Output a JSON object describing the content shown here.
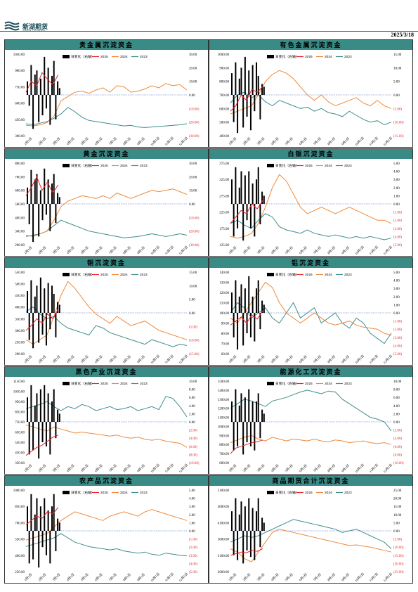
{
  "header": {
    "logo_text": "新湖期货",
    "logo_sub": "XINHU FUTURES",
    "date": "2025/3/18"
  },
  "colors": {
    "panel_title_bg": "#3a8a86",
    "daily_change": "#000000",
    "y2025": "#e8232a",
    "y2024": "#ee8a3c",
    "y2023": "#3e8e8c",
    "zero_line": "#4a6fd0",
    "negative_label": "#e8232a"
  },
  "chart_data": [
    {
      "type": "line",
      "title": "贵金属沉淀资金",
      "legend": [
        "日变化（右轴）",
        "2025",
        "2024",
        "2023"
      ],
      "left_ticks": [
        "1050.00",
        "900.00",
        "750.00",
        "600.00",
        "450.00",
        "300.00"
      ],
      "left_range": [
        300,
        1050
      ],
      "right_ticks": [
        "30.00",
        "20.00",
        "10.00",
        "0.00",
        "(10.00)",
        "(20.00)",
        "(30.00)"
      ],
      "right_range": [
        -30,
        30
      ],
      "x_labels": [
        "1月1日",
        "2月1日",
        "3月1日",
        "4月1日",
        "5月1日",
        "6月1日",
        "7月1日",
        "8月1日",
        "9月1日",
        "10月1日",
        "11月1日",
        "12月1日"
      ],
      "y2023": [
        410,
        400,
        415,
        430,
        460,
        500,
        560,
        520,
        470,
        440,
        430,
        420,
        410,
        400,
        390,
        395,
        380,
        375,
        380,
        385,
        390,
        395,
        400,
        410
      ],
      "y2024": [
        395,
        390,
        400,
        420,
        480,
        620,
        660,
        700,
        710,
        690,
        720,
        740,
        700,
        760,
        750,
        700,
        710,
        730,
        760,
        740,
        780,
        760,
        770,
        720
      ],
      "y2025": [
        700,
        800,
        760,
        880,
        820,
        770,
        860
      ],
      "daily": [
        10,
        -8,
        22,
        -25,
        15,
        18,
        -20,
        12,
        -15,
        28,
        -10,
        20,
        -22,
        14,
        25,
        -18,
        10,
        5
      ]
    },
    {
      "type": "line",
      "title": "有色金属沉淀资金",
      "legend": [
        "日变化（右轴）",
        "2025",
        "2024",
        "2023"
      ],
      "left_ticks": [
        "1000.00",
        "900.00",
        "800.00",
        "700.00",
        "600.00",
        "500.00",
        "400.00"
      ],
      "left_range": [
        400,
        1000
      ],
      "right_ticks": [
        "15.00",
        "10.00",
        "5.00",
        "0.00",
        "(5.00)",
        "(10.00)",
        "(15.00)"
      ],
      "right_range": [
        -15,
        15
      ],
      "x_labels": [
        "1月1日",
        "2月1日",
        "3月1日",
        "4月1日",
        "5月1日",
        "6月1日",
        "7月1日",
        "8月1日",
        "9月1日",
        "10月1日",
        "11月1日",
        "12月1日"
      ],
      "y2023": [
        640,
        700,
        720,
        680,
        700,
        650,
        620,
        660,
        640,
        620,
        600,
        610,
        580,
        600,
        570,
        560,
        540,
        580,
        550,
        520,
        500,
        510,
        480,
        500
      ],
      "y2024": [
        560,
        580,
        600,
        620,
        700,
        800,
        850,
        880,
        860,
        820,
        760,
        700,
        660,
        700,
        650,
        620,
        640,
        660,
        680,
        640,
        620,
        660,
        620,
        600
      ],
      "y2025": [
        580,
        620,
        700,
        660,
        740,
        720,
        760
      ],
      "daily": [
        8,
        -10,
        12,
        -14,
        6,
        10,
        -12,
        14,
        -8,
        9,
        -13,
        11,
        -6,
        12,
        7,
        -9,
        4,
        3
      ]
    },
    {
      "type": "line",
      "title": "黄金沉淀资金",
      "legend": [
        "日变化（右轴）",
        "2025",
        "2024",
        "2023"
      ],
      "left_ticks": [
        "800.00",
        "700.00",
        "600.00",
        "500.00",
        "400.00",
        "300.00",
        "200.00"
      ],
      "left_range": [
        200,
        800
      ],
      "right_ticks": [
        "30.00",
        "20.00",
        "10.00",
        "0.00",
        "(10.00)",
        "(20.00)",
        "(30.00)"
      ],
      "right_range": [
        -30,
        30
      ],
      "x_labels": [
        "1月1日",
        "2月1日",
        "3月1日",
        "4月1日",
        "5月1日",
        "6月1日",
        "7月1日",
        "8月1日",
        "9月1日",
        "10月1日",
        "11月1日",
        "12月1日"
      ],
      "y2023": [
        260,
        270,
        280,
        300,
        340,
        380,
        360,
        340,
        320,
        300,
        290,
        280,
        270,
        260,
        250,
        255,
        260,
        270,
        280,
        270,
        260,
        270,
        280,
        270
      ],
      "y2024": [
        270,
        260,
        280,
        300,
        380,
        480,
        520,
        540,
        560,
        550,
        540,
        560,
        540,
        580,
        560,
        540,
        560,
        580,
        600,
        590,
        600,
        610,
        590,
        570
      ],
      "y2025": [
        560,
        620,
        700,
        600,
        660,
        580,
        640
      ],
      "daily": [
        12,
        -15,
        25,
        -28,
        18,
        22,
        -24,
        10,
        -12,
        26,
        -8,
        18,
        -20,
        15,
        22,
        -14,
        8,
        5
      ]
    },
    {
      "type": "line",
      "title": "白银沉淀资金",
      "legend": [
        "日变化（右轴）",
        "2025",
        "2024",
        "2023"
      ],
      "left_ticks": [
        "375.00",
        "325.00",
        "275.00",
        "225.00",
        "175.00",
        "125.00"
      ],
      "left_range": [
        125,
        375
      ],
      "right_ticks": [
        "5.00",
        "4.00",
        "3.00",
        "2.00",
        "1.00",
        "0.00",
        "(1.00)",
        "(2.00)",
        "(3.00)",
        "(4.00)",
        "(5.00)"
      ],
      "right_range": [
        -5,
        5
      ],
      "x_labels": [
        "1月1日",
        "2月1日",
        "3月1日",
        "4月1日",
        "5月1日",
        "6月1日",
        "7月1日",
        "8月1日",
        "9月1日",
        "10月1日",
        "11月1日",
        "12月1日"
      ],
      "y2023": [
        190,
        200,
        185,
        175,
        200,
        220,
        210,
        180,
        170,
        165,
        160,
        170,
        160,
        155,
        150,
        155,
        150,
        145,
        150,
        145,
        150,
        145,
        140,
        145
      ],
      "y2024": [
        150,
        145,
        150,
        160,
        190,
        240,
        300,
        340,
        320,
        280,
        240,
        220,
        230,
        240,
        230,
        220,
        230,
        240,
        230,
        220,
        210,
        200,
        200,
        190
      ],
      "y2025": [
        190,
        210,
        230,
        220,
        250,
        235,
        260
      ],
      "daily": [
        3,
        -4,
        4.5,
        -3,
        2,
        4,
        -4.5,
        3.5,
        -2,
        4,
        -3,
        2.5,
        -4,
        3,
        4.5,
        -2.5,
        1.5,
        1
      ]
    },
    {
      "type": "line",
      "title": "铜沉淀资金",
      "legend": [
        "日变化（右轴）",
        "2025",
        "2024",
        "2023"
      ],
      "left_ticks": [
        "550.00",
        "500.00",
        "450.00",
        "400.00",
        "350.00",
        "300.00",
        "250.00",
        "200.00"
      ],
      "left_range": [
        200,
        550
      ],
      "right_ticks": [
        "15.00",
        "10.00",
        "5.00",
        "0.00",
        "(5.00)",
        "(10.00)",
        "(15.00)"
      ],
      "right_range": [
        -15,
        15
      ],
      "x_labels": [
        "1月1日",
        "2月1日",
        "3月1日",
        "4月1日",
        "5月1日",
        "6月1日",
        "7月1日",
        "8月1日",
        "9月1日",
        "10月1日",
        "11月1日",
        "12月1日"
      ],
      "y2023": [
        380,
        400,
        370,
        350,
        360,
        330,
        310,
        300,
        290,
        280,
        320,
        310,
        290,
        280,
        270,
        260,
        250,
        240,
        260,
        250,
        240,
        230,
        240,
        235
      ],
      "y2024": [
        260,
        240,
        260,
        280,
        360,
        450,
        510,
        480,
        440,
        400,
        370,
        350,
        330,
        360,
        340,
        320,
        330,
        340,
        320,
        300,
        290,
        280,
        270,
        260
      ],
      "y2025": [
        300,
        320,
        350,
        330,
        370,
        350,
        390
      ],
      "daily": [
        8,
        -10,
        12,
        -13,
        6,
        10,
        -11,
        13,
        -8,
        9,
        -12,
        11,
        -6,
        10,
        7,
        -9,
        4,
        3
      ]
    },
    {
      "type": "line",
      "title": "铝沉淀资金",
      "legend": [
        "日变化（右轴）",
        "2025",
        "2024",
        "2023"
      ],
      "left_ticks": [
        "140.00",
        "130.00",
        "120.00",
        "110.00",
        "100.00",
        "90.00",
        "80.00",
        "70.00",
        "60.00"
      ],
      "left_range": [
        60,
        140
      ],
      "right_ticks": [
        "5.00",
        "4.00",
        "3.00",
        "2.00",
        "1.00",
        "0.00",
        "(1.00)",
        "(2.00)",
        "(3.00)",
        "(4.00)",
        "(5.00)"
      ],
      "right_range": [
        -5,
        5
      ],
      "x_labels": [
        "1月1日",
        "2月1日",
        "3月1日",
        "4月1日",
        "5月1日",
        "6月1日",
        "7月1日",
        "8月1日",
        "9月1日",
        "10月1日",
        "11月1日",
        "12月1日"
      ],
      "y2023": [
        100,
        110,
        105,
        95,
        100,
        105,
        95,
        90,
        100,
        110,
        95,
        100,
        105,
        90,
        95,
        100,
        90,
        85,
        95,
        90,
        80,
        75,
        70,
        80
      ],
      "y2024": [
        95,
        90,
        100,
        110,
        120,
        130,
        125,
        110,
        100,
        95,
        90,
        95,
        100,
        95,
        90,
        88,
        90,
        92,
        88,
        86,
        85,
        84,
        80,
        78
      ],
      "y2025": [
        88,
        92,
        96,
        90,
        98,
        94,
        102
      ],
      "daily": [
        2.5,
        -3,
        4,
        -4.5,
        2,
        3.5,
        -4,
        3,
        -2.5,
        4.5,
        -3,
        2,
        -3.5,
        3,
        4,
        -2,
        1.5,
        1
      ]
    },
    {
      "type": "line",
      "title": "黑色产业沉淀资金",
      "legend": [
        "日变化（右轴）",
        "2025",
        "2024",
        "2023"
      ],
      "left_ticks": [
        "1150.00",
        "1050.00",
        "950.00",
        "850.00",
        "750.00",
        "650.00",
        "550.00",
        "450.00",
        "350.00"
      ],
      "left_range": [
        350,
        1150
      ],
      "right_ticks": [
        "10.00",
        "8.00",
        "6.00",
        "4.00",
        "2.00",
        "0.00",
        "(2.00)",
        "(4.00)",
        "(6.00)",
        "(8.00)",
        "(10.00)"
      ],
      "right_range": [
        -10,
        10
      ],
      "x_labels": [
        "1月1日",
        "2月1日",
        "3月1日",
        "4月1日",
        "5月1日",
        "6月1日",
        "7月1日",
        "8月1日",
        "9月1日",
        "10月1日",
        "11月1日",
        "12月1日"
      ],
      "y2023": [
        880,
        900,
        920,
        950,
        900,
        860,
        900,
        880,
        920,
        900,
        860,
        880,
        900,
        870,
        880,
        900,
        860,
        880,
        900,
        870,
        1000,
        980,
        900,
        800
      ],
      "y2024": [
        720,
        700,
        680,
        660,
        700,
        680,
        660,
        640,
        650,
        640,
        630,
        620,
        610,
        620,
        600,
        590,
        600,
        580,
        570,
        580,
        560,
        550,
        540,
        500
      ],
      "y2025": [
        420,
        460,
        500,
        520,
        560,
        600,
        620
      ],
      "daily": [
        6,
        -8,
        9,
        -7,
        4,
        7,
        -9,
        8,
        -5,
        9,
        -6,
        7,
        -8,
        5,
        8,
        -4,
        3,
        2
      ]
    },
    {
      "type": "line",
      "title": "能源化工沉淀资金",
      "legend": [
        "日变化（右轴）",
        "2025",
        "2024",
        "2023"
      ],
      "left_ticks": [
        "1500.00",
        "1400.00",
        "1300.00",
        "1200.00",
        "1100.00",
        "1000.00",
        "900.00",
        "800.00",
        "700.00",
        "600.00"
      ],
      "left_range": [
        600,
        1500
      ],
      "right_ticks": [
        "10.00",
        "8.00",
        "6.00",
        "4.00",
        "2.00",
        "0.00",
        "(2.00)",
        "(4.00)",
        "(6.00)",
        "(8.00)",
        "(10.00)"
      ],
      "right_range": [
        -10,
        10
      ],
      "x_labels": [
        "1月1日",
        "2月1日",
        "3月1日",
        "4月1日",
        "5月1日",
        "6月1日",
        "7月1日",
        "8月1日",
        "9月1日",
        "10月1日",
        "11月1日",
        "12月1日"
      ],
      "y2023": [
        1200,
        1250,
        1300,
        1280,
        1250,
        1220,
        1280,
        1300,
        1320,
        1350,
        1380,
        1400,
        1380,
        1360,
        1390,
        1380,
        1300,
        1250,
        1200,
        1150,
        1100,
        1080,
        1050,
        950
      ],
      "y2024": [
        820,
        850,
        880,
        900,
        860,
        840,
        880,
        860,
        840,
        860,
        850,
        840,
        860,
        840,
        830,
        850,
        840,
        820,
        830,
        840,
        820,
        810,
        820,
        800
      ],
      "y2025": [
        700,
        760,
        780,
        800,
        820,
        830,
        850
      ],
      "daily": [
        5,
        -7,
        8,
        -6,
        4,
        7,
        -8,
        6,
        -5,
        8,
        -6,
        5,
        -7,
        5,
        7,
        -4,
        3,
        2
      ]
    },
    {
      "type": "line",
      "title": "农产品沉淀资金",
      "legend": [
        "日变化（右轴）",
        "2025",
        "2024",
        "2023"
      ],
      "left_ticks": [
        "1000.00",
        "850.00",
        "700.00",
        "550.00",
        "400.00",
        "250.00"
      ],
      "left_range": [
        250,
        1000
      ],
      "right_ticks": [
        "5.00",
        "4.00",
        "3.00",
        "2.00",
        "1.00",
        "0.00",
        "(1.00)",
        "(2.00)",
        "(3.00)",
        "(4.00)",
        "(5.00)"
      ],
      "right_range": [
        -5,
        5
      ],
      "x_labels": [
        "1月1日",
        "2月1日",
        "3月1日",
        "4月1日",
        "5月1日",
        "6月1日",
        "7月1日",
        "8月1日",
        "9月1日",
        "10月1日",
        "11月1日",
        "12月1日"
      ],
      "y2023": [
        480,
        500,
        520,
        540,
        560,
        600,
        560,
        520,
        500,
        480,
        470,
        460,
        450,
        460,
        440,
        430,
        420,
        430,
        410,
        400,
        420,
        410,
        400,
        395
      ],
      "y2024": [
        540,
        560,
        580,
        600,
        660,
        720,
        760,
        800,
        780,
        760,
        740,
        720,
        760,
        780,
        800,
        780,
        760,
        800,
        820,
        800,
        780,
        760,
        740,
        720
      ],
      "y2025": [
        680,
        720,
        760,
        740,
        800,
        780,
        840
      ],
      "daily": [
        3,
        -4,
        4.5,
        -3.5,
        2,
        4,
        -4.5,
        3,
        -2,
        4,
        -3,
        2.5,
        -4,
        3,
        4.5,
        -2.5,
        1.5,
        1
      ]
    },
    {
      "type": "line",
      "title": "商品期货合计沉淀资金",
      "legend": [
        "日变化（右轴）",
        "2025",
        "2024",
        "2023"
      ],
      "left_ticks": [
        "5100.00",
        "4600.00",
        "4100.00",
        "3600.00",
        "3100.00",
        "2600.00"
      ],
      "left_range": [
        2600,
        5100
      ],
      "right_ticks": [
        "25.00",
        "20.00",
        "15.00",
        "10.00",
        "5.00",
        "0.00",
        "(5.00)",
        "(10.00)",
        "(15.00)",
        "(20.00)",
        "(25.00)"
      ],
      "right_range": [
        -25,
        25
      ],
      "x_labels": [
        "1月1日",
        "2月1日",
        "3月1日",
        "4月1日",
        "5月1日",
        "6月1日",
        "7月1日",
        "8月1日",
        "9月1日",
        "10月1日",
        "11月1日",
        "12月1日"
      ],
      "y2023": [
        3500,
        3600,
        3700,
        3650,
        3700,
        3800,
        3900,
        4000,
        4100,
        4200,
        4150,
        4100,
        4050,
        4000,
        3950,
        3900,
        3800,
        3850,
        3900,
        3800,
        3700,
        3600,
        3500,
        3300
      ],
      "y2024": [
        3300,
        3200,
        3000,
        2900,
        3200,
        3500,
        3800,
        3900,
        3850,
        3800,
        3750,
        3700,
        3650,
        3600,
        3550,
        3500,
        3450,
        3400,
        3420,
        3380,
        3350,
        3300,
        3250,
        3200
      ],
      "y2025": [
        3100,
        3150,
        3200,
        3180,
        3250,
        3220,
        3300
      ],
      "daily": [
        12,
        -15,
        20,
        -18,
        10,
        18,
        -20,
        15,
        -12,
        20,
        -16,
        14,
        -18,
        12,
        20,
        -10,
        8,
        5
      ]
    }
  ]
}
